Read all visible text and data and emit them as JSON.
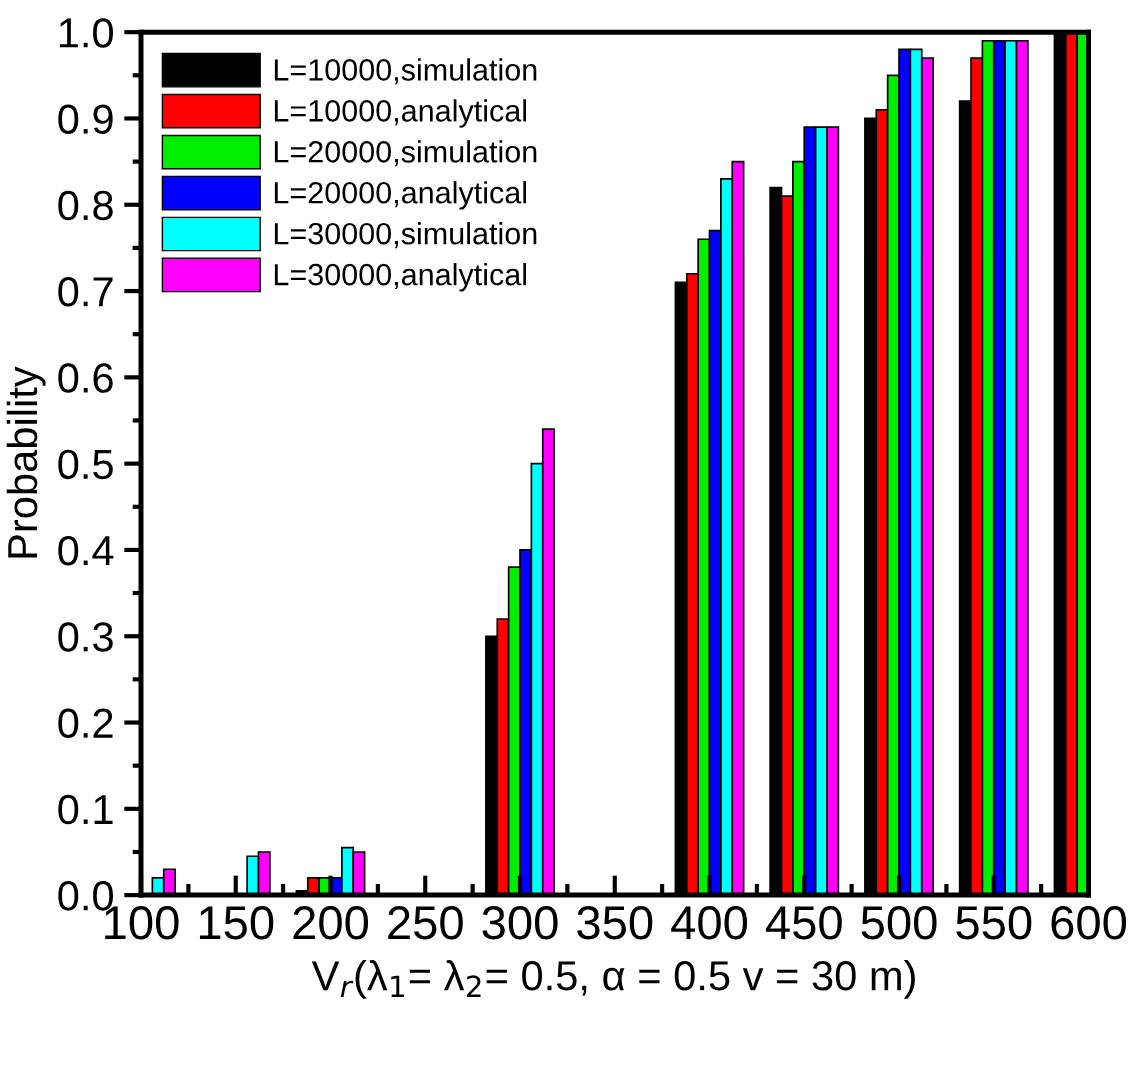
{
  "chart_data": {
    "type": "bar",
    "xlabel": "V$_{r}$(λ$_{1}$= λ$_{2}$= 0.5, α = 0.5 v = 30 m)",
    "ylabel": "Probability",
    "x": [
      100,
      150,
      200,
      300,
      400,
      450,
      500,
      550,
      600
    ],
    "series": [
      {
        "name": "L=10000,simulation",
        "color": "#000000",
        "values": [
          null,
          null,
          0.005,
          0.3,
          0.71,
          0.82,
          0.9,
          0.92,
          1.0
        ]
      },
      {
        "name": "L=10000,analytical",
        "color": "#ff0000",
        "values": [
          null,
          null,
          0.02,
          0.32,
          0.72,
          0.81,
          0.91,
          0.97,
          1.0
        ]
      },
      {
        "name": "L=20000,simulation",
        "color": "#00ee00",
        "values": [
          null,
          null,
          0.02,
          0.38,
          0.76,
          0.85,
          0.95,
          0.99,
          1.0
        ]
      },
      {
        "name": "L=20000,analytical",
        "color": "#0000ff",
        "values": [
          null,
          null,
          0.02,
          0.4,
          0.77,
          0.89,
          0.98,
          0.99,
          null
        ]
      },
      {
        "name": "L=30000,simulation",
        "color": "#00ffff",
        "values": [
          0.02,
          0.045,
          0.055,
          0.5,
          0.83,
          0.89,
          0.98,
          0.99,
          null
        ]
      },
      {
        "name": "L=30000,analytical",
        "color": "#ff00ff",
        "values": [
          0.03,
          0.05,
          0.05,
          0.54,
          0.85,
          0.89,
          0.97,
          0.99,
          null
        ]
      }
    ],
    "xlim": [
      100,
      600
    ],
    "xticks": [
      100,
      150,
      200,
      250,
      300,
      350,
      400,
      450,
      500,
      550,
      600
    ],
    "ylim": [
      0,
      1.0
    ],
    "yticks": [
      {
        "value": 0,
        "label": "0.0"
      },
      0.1,
      0.2,
      0.3,
      0.4,
      0.5,
      0.6,
      0.7,
      0.8,
      0.9,
      {
        "value": 1.0,
        "label": "1.0"
      }
    ],
    "grid": false,
    "legend": "top left"
  }
}
